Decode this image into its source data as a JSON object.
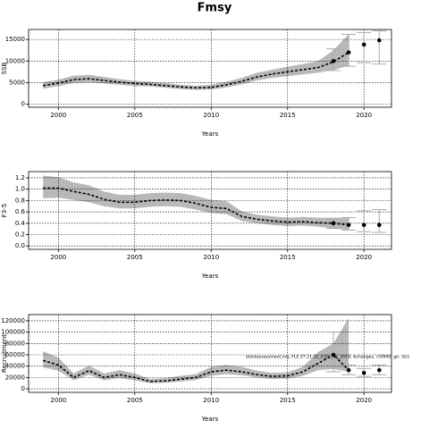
{
  "chart_data": [
    {
      "type": "line",
      "title": "Fmsy",
      "xlabel": "Years",
      "ylabel": "SSB",
      "x": [
        1999,
        2000,
        2001,
        2002,
        2003,
        2004,
        2005,
        2006,
        2007,
        2008,
        2009,
        2010,
        2011,
        2012,
        2013,
        2014,
        2015,
        2016,
        2017,
        2018,
        2019
      ],
      "values": [
        4300,
        4900,
        5700,
        5900,
        5500,
        5100,
        4800,
        4600,
        4300,
        4000,
        3800,
        3900,
        4500,
        5300,
        6300,
        7000,
        7500,
        8000,
        8500,
        9800,
        12000
      ],
      "lower": [
        3600,
        4200,
        4900,
        5100,
        4800,
        4500,
        4200,
        4100,
        3800,
        3500,
        3300,
        3400,
        3900,
        4600,
        5500,
        6100,
        6500,
        6900,
        7300,
        7900,
        9000
      ],
      "upper": [
        5100,
        5700,
        6600,
        6800,
        6300,
        5800,
        5400,
        5200,
        4900,
        4500,
        4300,
        4500,
        5200,
        6100,
        7300,
        8000,
        8700,
        9300,
        10000,
        12500,
        16200
      ],
      "points": {
        "x": [
          2018,
          2019,
          2020,
          2021
        ],
        "values": [
          10000,
          12000,
          13800,
          14800
        ],
        "lower": [
          7800,
          8800,
          9600,
          9300
        ],
        "upper": [
          12800,
          16200,
          16600,
          17000
        ]
      },
      "color": "#000000",
      "band_color": "#b8b8b8",
      "errorbar_color": "#aaaaaa",
      "xlim": [
        1998.05,
        2021.8
      ],
      "xticks": [
        2000,
        2005,
        2010,
        2015,
        2020
      ],
      "ylim": [
        -700,
        17300
      ],
      "yticks": [
        0,
        5000,
        10000,
        15000
      ],
      "grid": true
    },
    {
      "type": "line",
      "xlabel": "Years",
      "ylabel": "F3-5",
      "x": [
        1999,
        2000,
        2001,
        2002,
        2003,
        2004,
        2005,
        2006,
        2007,
        2008,
        2009,
        2010,
        2011,
        2012,
        2013,
        2014,
        2015,
        2016,
        2017,
        2018,
        2019
      ],
      "values": [
        1.02,
        1.02,
        0.96,
        0.91,
        0.82,
        0.77,
        0.77,
        0.8,
        0.81,
        0.8,
        0.75,
        0.68,
        0.66,
        0.52,
        0.47,
        0.44,
        0.42,
        0.43,
        0.41,
        0.4,
        0.37
      ],
      "lower": [
        0.84,
        0.85,
        0.81,
        0.77,
        0.7,
        0.66,
        0.66,
        0.69,
        0.7,
        0.69,
        0.64,
        0.58,
        0.56,
        0.44,
        0.4,
        0.37,
        0.35,
        0.36,
        0.34,
        0.31,
        0.28
      ],
      "upper": [
        1.24,
        1.21,
        1.12,
        1.07,
        0.96,
        0.9,
        0.9,
        0.93,
        0.94,
        0.93,
        0.88,
        0.81,
        0.79,
        0.61,
        0.55,
        0.52,
        0.5,
        0.51,
        0.5,
        0.49,
        0.5
      ],
      "points": {
        "x": [
          2018,
          2019,
          2020,
          2021
        ],
        "values": [
          0.4,
          0.37,
          0.37,
          0.37
        ],
        "lower": [
          0.31,
          0.28,
          0.25,
          0.24
        ],
        "upper": [
          0.49,
          0.5,
          0.62,
          0.64
        ]
      },
      "color": "#000000",
      "band_color": "#b8b8b8",
      "errorbar_color": "#aaaaaa",
      "xlim": [
        1998.05,
        2021.8
      ],
      "xticks": [
        2000,
        2005,
        2010,
        2015,
        2020
      ],
      "ylim": [
        -0.06,
        1.31
      ],
      "yticks": [
        {
          "value": 0,
          "label": "0.0"
        },
        0.2,
        0.4,
        0.6,
        0.8,
        {
          "value": 1,
          "label": "1.0"
        },
        1.2
      ],
      "grid": true
    },
    {
      "type": "line",
      "xlabel": "Years",
      "ylabel": "Recruitment",
      "annotation": "stockassessment.org, FLE.27.21-32_ICES_AG_2019, &changes, r10949, git: 503",
      "x": [
        1999,
        2000,
        2001,
        2002,
        2003,
        2004,
        2005,
        2006,
        2007,
        2008,
        2009,
        2010,
        2011,
        2012,
        2013,
        2014,
        2015,
        2016,
        2017,
        2018,
        2019
      ],
      "values": [
        50000,
        42000,
        20000,
        32000,
        20000,
        25000,
        20000,
        13000,
        14000,
        17000,
        20000,
        30000,
        33000,
        30000,
        25000,
        22000,
        23000,
        30000,
        45000,
        60000,
        33000
      ],
      "lower": [
        38000,
        32000,
        15000,
        25000,
        15000,
        19000,
        15000,
        10000,
        10500,
        13000,
        15500,
        23000,
        26000,
        24000,
        20000,
        17500,
        18000,
        23000,
        33000,
        35000,
        30000
      ],
      "upper": [
        66000,
        55000,
        27000,
        41000,
        27000,
        33000,
        27000,
        17500,
        19000,
        23000,
        26000,
        39000,
        42000,
        39000,
        32000,
        28000,
        29000,
        39000,
        65000,
        80000,
        125000
      ],
      "points": {
        "x": [
          2018,
          2019,
          2020,
          2021
        ],
        "values": [
          60000,
          33000,
          28000,
          33000
        ],
        "lower": [
          30000,
          25000,
          22000,
          25000
        ],
        "upper": [
          100000,
          42000,
          36000,
          42000
        ]
      },
      "color": "#000000",
      "band_color": "#b8b8b8",
      "errorbar_color": "#aaaaaa",
      "xlim": [
        1998.05,
        2021.8
      ],
      "xticks": [
        2000,
        2005,
        2010,
        2015,
        2020
      ],
      "ylim": [
        -6200,
        130900
      ],
      "yticks": [
        0,
        20000,
        40000,
        60000,
        80000,
        100000,
        120000
      ],
      "grid": true
    }
  ]
}
